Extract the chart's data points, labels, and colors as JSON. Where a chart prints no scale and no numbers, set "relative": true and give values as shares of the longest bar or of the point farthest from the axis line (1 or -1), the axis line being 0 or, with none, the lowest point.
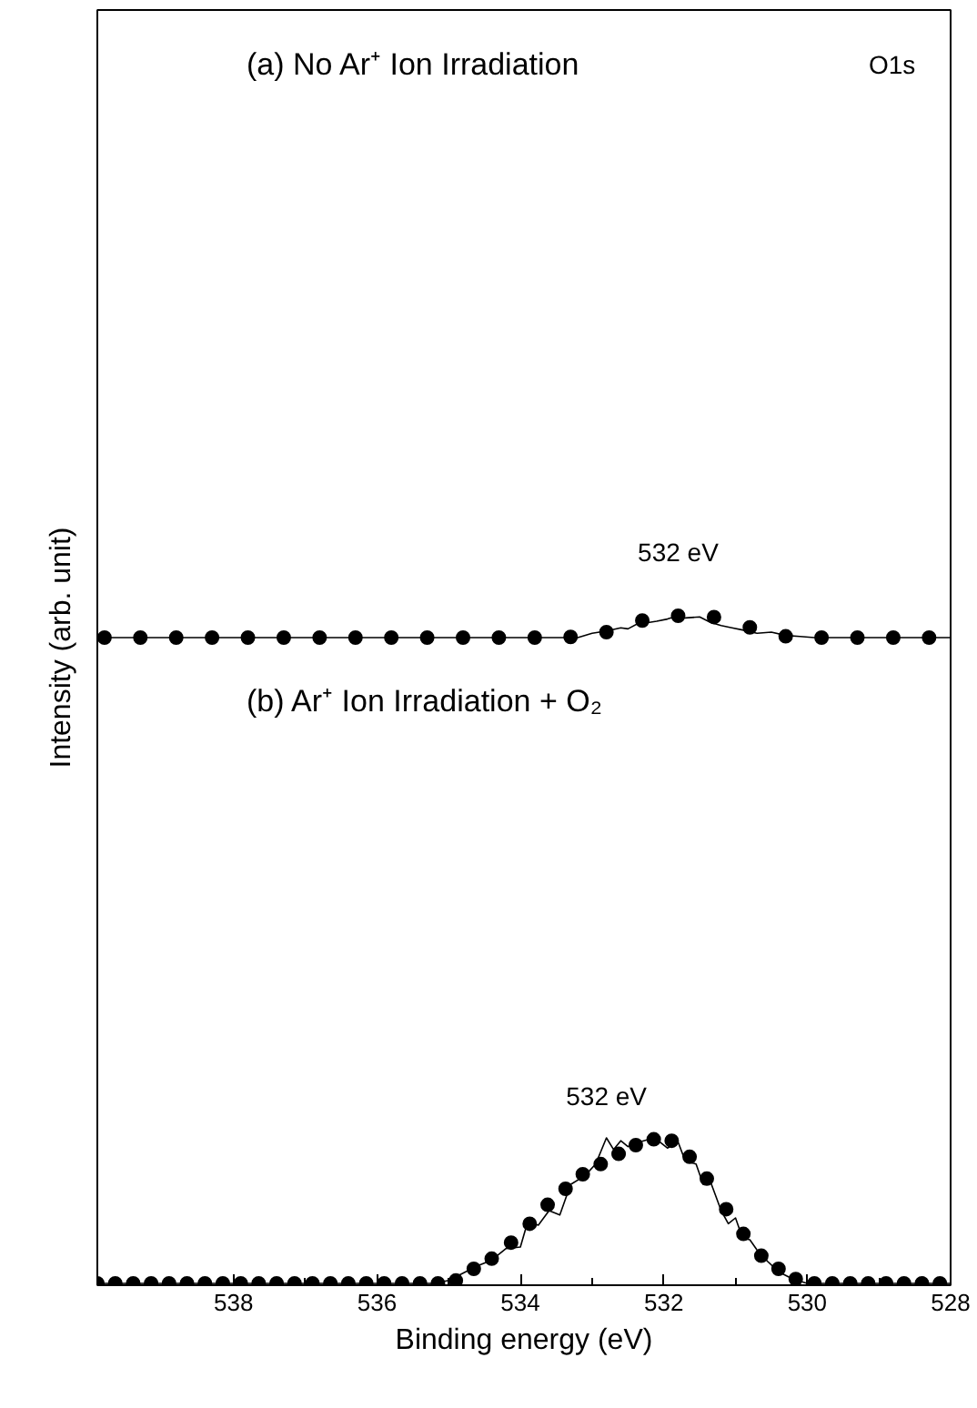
{
  "chart_data": [
    {
      "type": "line",
      "title": "(a) No Ar⁺ Ion Irradiation",
      "ylabel": "Intensity (arb. unit)",
      "annotations": [
        "O1s",
        "532 eV"
      ],
      "relative": true,
      "xlim": [
        539.9,
        528
      ],
      "tick_labels": false,
      "series": [
        {
          "color": "#000000",
          "x": [
            539.9,
            533.2,
            533.0,
            532.8,
            532.6,
            532.5,
            532.3,
            532.2,
            532.1,
            531.95,
            531.8,
            531.7,
            531.5,
            531.35,
            531.2,
            531.05,
            530.9,
            530.7,
            530.5,
            530.3,
            530.1,
            529.9,
            528.0
          ],
          "values": [
            0,
            0,
            0.2,
            0.3,
            0.45,
            0.4,
            0.75,
            0.7,
            0.75,
            0.85,
            1.0,
            0.9,
            0.95,
            0.7,
            0.55,
            0.45,
            0.35,
            0.2,
            0.25,
            0.1,
            0.05,
            0,
            0
          ]
        },
        {
          "type": "scatter",
          "marker": "circle",
          "color": "#000000",
          "x": [
            539.8,
            539.3,
            538.8,
            538.3,
            537.8,
            537.3,
            536.8,
            536.3,
            535.8,
            535.3,
            534.8,
            534.3,
            533.8,
            533.3,
            532.8,
            532.3,
            531.8,
            531.3,
            530.8,
            530.3,
            529.8,
            529.3,
            528.8,
            528.3
          ],
          "values": [
            0,
            0,
            0,
            0,
            0,
            0,
            0,
            0,
            0,
            0,
            0,
            0,
            0,
            0.03,
            0.25,
            0.78,
            1.0,
            0.94,
            0.47,
            0.06,
            0,
            0,
            0,
            0
          ]
        }
      ]
    },
    {
      "type": "line",
      "title": "(b) Ar⁺ Ion Irradiation + O₂",
      "xlabel": "Binding energy (eV)",
      "annotations": [
        "532 eV"
      ],
      "relative": true,
      "xlim": [
        539.9,
        528
      ],
      "xticks": [
        538,
        536,
        534,
        532,
        530,
        528
      ],
      "tick_labels": "x",
      "series": [
        {
          "color": "#000000",
          "x": [
            539.9,
            535.2,
            535.0,
            534.8,
            534.6,
            534.4,
            534.2,
            534.0,
            533.9,
            533.75,
            533.6,
            533.45,
            533.3,
            533.1,
            532.95,
            532.8,
            532.7,
            532.6,
            532.5,
            532.35,
            532.2,
            532.05,
            531.95,
            531.8,
            531.7,
            531.55,
            531.45,
            531.35,
            531.2,
            531.1,
            531.0,
            530.9,
            530.8,
            530.7,
            530.55,
            530.4,
            530.2,
            530.0,
            528.0
          ],
          "values": [
            0,
            0,
            0.02,
            0.07,
            0.12,
            0.16,
            0.24,
            0.25,
            0.42,
            0.4,
            0.5,
            0.47,
            0.68,
            0.74,
            0.82,
            1.0,
            0.92,
            0.98,
            0.94,
            0.97,
            0.99,
            0.97,
            0.93,
            0.97,
            0.84,
            0.82,
            0.68,
            0.7,
            0.5,
            0.41,
            0.45,
            0.31,
            0.3,
            0.23,
            0.15,
            0.08,
            0.03,
            0,
            0
          ]
        },
        {
          "type": "scatter",
          "marker": "circle",
          "color": "#000000",
          "x": [
            539.9,
            539.65,
            539.4,
            539.15,
            538.9,
            538.65,
            538.4,
            538.15,
            537.9,
            537.65,
            537.4,
            537.15,
            536.9,
            536.65,
            536.4,
            536.15,
            535.9,
            535.65,
            535.4,
            535.15,
            534.9,
            534.65,
            534.4,
            534.13,
            533.87,
            533.62,
            533.37,
            533.13,
            532.88,
            532.63,
            532.39,
            532.14,
            531.89,
            531.64,
            531.4,
            531.13,
            530.89,
            530.64,
            530.4,
            530.16,
            529.9,
            529.65,
            529.4,
            529.15,
            528.9,
            528.65,
            528.4,
            528.15
          ],
          "values": [
            0,
            0,
            0,
            0,
            0,
            0,
            0,
            0,
            0,
            0,
            0,
            0,
            0,
            0,
            0,
            0,
            0,
            0,
            0,
            0,
            0.02,
            0.1,
            0.17,
            0.28,
            0.41,
            0.54,
            0.65,
            0.75,
            0.82,
            0.89,
            0.95,
            0.99,
            0.98,
            0.87,
            0.72,
            0.51,
            0.34,
            0.19,
            0.1,
            0.03,
            0,
            0,
            0,
            0,
            0,
            0,
            0,
            0
          ]
        }
      ]
    }
  ]
}
